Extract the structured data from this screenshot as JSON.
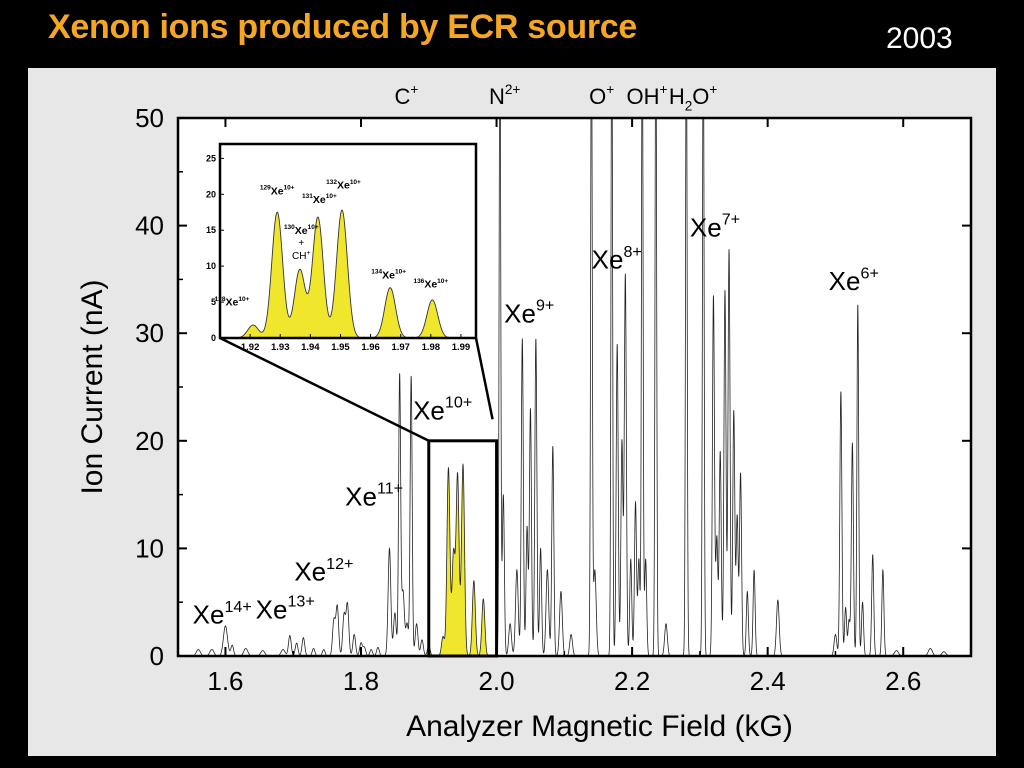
{
  "header": {
    "title": "Xenon ions produced by ECR source",
    "year": "2003"
  },
  "colors": {
    "background": "#000000",
    "panel": "#e7e7e7",
    "title": "#f5a623",
    "fill": "#f0e62c"
  },
  "chart_data": [
    {
      "type": "line",
      "title": "",
      "xlabel": "Analyzer Magnetic Field (kG)",
      "ylabel": "Ion Current (nA)",
      "xlim": [
        1.53,
        2.7
      ],
      "ylim": [
        0,
        50
      ],
      "xticks": [
        1.6,
        1.8,
        2.0,
        2.2,
        2.4,
        2.6
      ],
      "yticks": [
        0,
        10,
        20,
        30,
        40,
        50
      ],
      "grid": false,
      "highlight_region": [
        1.9,
        2.0
      ],
      "peaks": [
        [
          1.56,
          0.6,
          0.003
        ],
        [
          1.58,
          0.6,
          0.003
        ],
        [
          1.6,
          2.8,
          0.003
        ],
        [
          1.61,
          1.0,
          0.002
        ],
        [
          1.63,
          0.7,
          0.003
        ],
        [
          1.655,
          0.5,
          0.003
        ],
        [
          1.685,
          0.6,
          0.003
        ],
        [
          1.695,
          1.9,
          0.002
        ],
        [
          1.705,
          1.2,
          0.002
        ],
        [
          1.715,
          1.7,
          0.002
        ],
        [
          1.73,
          0.7,
          0.002
        ],
        [
          1.745,
          0.6,
          0.002
        ],
        [
          1.76,
          3.3,
          0.002
        ],
        [
          1.765,
          4.6,
          0.002
        ],
        [
          1.775,
          3.8,
          0.002
        ],
        [
          1.78,
          4.8,
          0.002
        ],
        [
          1.79,
          2.0,
          0.002
        ],
        [
          1.8,
          1.2,
          0.002
        ],
        [
          1.805,
          0.8,
          0.002
        ],
        [
          1.815,
          0.6,
          0.002
        ],
        [
          1.825,
          0.8,
          0.002
        ],
        [
          1.842,
          10.0,
          0.002
        ],
        [
          1.85,
          4.0,
          0.002
        ],
        [
          1.857,
          26.0,
          0.0015
        ],
        [
          1.862,
          6.0,
          0.002
        ],
        [
          1.868,
          3.0,
          0.002
        ],
        [
          1.874,
          26.0,
          0.0015
        ],
        [
          1.882,
          3.0,
          0.002
        ],
        [
          1.89,
          1.5,
          0.002
        ],
        [
          1.9,
          1.0,
          0.002
        ],
        [
          1.921,
          1.8,
          0.0022
        ],
        [
          1.929,
          17.5,
          0.0022
        ],
        [
          1.9365,
          9.5,
          0.0022
        ],
        [
          1.9425,
          16.8,
          0.0022
        ],
        [
          1.9505,
          17.8,
          0.0022
        ],
        [
          1.9665,
          7.0,
          0.0022
        ],
        [
          1.9805,
          5.3,
          0.0022
        ],
        [
          2.005,
          60,
          0.0012
        ],
        [
          2.01,
          15,
          0.0015
        ],
        [
          2.02,
          3,
          0.002
        ],
        [
          2.03,
          8,
          0.002
        ],
        [
          2.038,
          29.5,
          0.0015
        ],
        [
          2.045,
          12,
          0.0015
        ],
        [
          2.05,
          23,
          0.0015
        ],
        [
          2.058,
          29.5,
          0.0015
        ],
        [
          2.065,
          10,
          0.0015
        ],
        [
          2.075,
          8,
          0.002
        ],
        [
          2.083,
          19.5,
          0.0015
        ],
        [
          2.095,
          6,
          0.002
        ],
        [
          2.11,
          2,
          0.002
        ],
        [
          2.14,
          60,
          0.0012
        ],
        [
          2.145,
          8,
          0.002
        ],
        [
          2.17,
          60,
          0.0012
        ],
        [
          2.178,
          29,
          0.0015
        ],
        [
          2.185,
          20,
          0.0015
        ],
        [
          2.19,
          35.5,
          0.0015
        ],
        [
          2.198,
          9,
          0.0015
        ],
        [
          2.205,
          14.3,
          0.0015
        ],
        [
          2.21,
          9,
          0.0015
        ],
        [
          2.215,
          60,
          0.0012
        ],
        [
          2.22,
          9,
          0.0015
        ],
        [
          2.235,
          60,
          0.0012
        ],
        [
          2.25,
          3,
          0.002
        ],
        [
          2.28,
          60,
          0.0012
        ],
        [
          2.305,
          60,
          0.0012
        ],
        [
          2.32,
          33.5,
          0.0015
        ],
        [
          2.325,
          11,
          0.0015
        ],
        [
          2.33,
          19,
          0.0015
        ],
        [
          2.337,
          34,
          0.0015
        ],
        [
          2.343,
          37.8,
          0.0015
        ],
        [
          2.35,
          22.8,
          0.0015
        ],
        [
          2.355,
          13,
          0.0015
        ],
        [
          2.36,
          17,
          0.0015
        ],
        [
          2.37,
          6,
          0.0015
        ],
        [
          2.38,
          8,
          0.0015
        ],
        [
          2.415,
          5.2,
          0.002
        ],
        [
          2.5,
          2,
          0.002
        ],
        [
          2.508,
          24.6,
          0.0015
        ],
        [
          2.515,
          4.5,
          0.0015
        ],
        [
          2.52,
          3.3,
          0.0015
        ],
        [
          2.525,
          19.8,
          0.0015
        ],
        [
          2.533,
          32.7,
          0.0013
        ],
        [
          2.54,
          5,
          0.0015
        ],
        [
          2.555,
          9.4,
          0.0015
        ],
        [
          2.57,
          8,
          0.0015
        ],
        [
          2.59,
          0.5,
          0.003
        ],
        [
          2.64,
          0.7,
          0.003
        ],
        [
          2.66,
          0.4,
          0.003
        ]
      ],
      "peak_labels": [
        {
          "base": "Xe",
          "sup": "14+",
          "x": 1.61,
          "y": 3.0
        },
        {
          "base": "Xe",
          "sup": "13+",
          "x": 1.7,
          "y": 3.5
        },
        {
          "base": "Xe",
          "sup": "12+",
          "x": 1.76,
          "y": 7.0
        },
        {
          "base": "Xe",
          "sup": "11+",
          "x": 1.84,
          "y": 14.0
        },
        {
          "base": "Xe",
          "sup": "10+",
          "x": 1.95,
          "y": 22.0
        },
        {
          "base": "Xe",
          "sup": "9+",
          "x": 2.06,
          "y": 31.0
        },
        {
          "base": "Xe",
          "sup": "8+",
          "x": 2.195,
          "y": 36.0
        },
        {
          "base": "Xe",
          "sup": "7+",
          "x": 2.34,
          "y": 39.0
        },
        {
          "base": "Xe",
          "sup": "6+",
          "x": 2.53,
          "y": 34.0
        }
      ],
      "contaminant_labels": [
        {
          "base": "C",
          "sup": "+",
          "x": 1.867
        },
        {
          "base": "N",
          "sup": "2+",
          "x": 2.012
        },
        {
          "base": "O",
          "sup": "+",
          "x": 2.155
        },
        {
          "base": "OH",
          "sup": "+",
          "x": 2.222
        },
        {
          "base": "H",
          "sub": "2",
          "after": "O",
          "sup": "+",
          "x": 2.29
        }
      ]
    },
    {
      "type": "area",
      "title": "",
      "xlabel": "",
      "ylabel": "",
      "xlim": [
        1.91,
        1.995
      ],
      "ylim": [
        0,
        27
      ],
      "xticks": [
        1.92,
        1.93,
        1.94,
        1.95,
        1.96,
        1.97,
        1.98,
        1.99
      ],
      "yticks": [
        0,
        5,
        10,
        15,
        20,
        25
      ],
      "peaks": [
        [
          1.921,
          1.8,
          0.0018
        ],
        [
          1.929,
          17.5,
          0.0018
        ],
        [
          1.9365,
          9.5,
          0.0018
        ],
        [
          1.9425,
          16.8,
          0.0018
        ],
        [
          1.9505,
          17.8,
          0.0018
        ],
        [
          1.9665,
          7.0,
          0.0018
        ],
        [
          1.9805,
          5.3,
          0.0018
        ]
      ],
      "isotope_labels": [
        {
          "mass": "128",
          "base": "Xe",
          "sup": "10+",
          "x": 1.914,
          "y": 4.5
        },
        {
          "mass": "129",
          "base": "Xe",
          "sup": "10+",
          "x": 1.929,
          "y": 20.0
        },
        {
          "mass": "130",
          "base": "Xe",
          "sup": "10+",
          "x": 1.937,
          "y": 14.5,
          "extra": [
            "+",
            "CH"
          ],
          "extra_sup": "+"
        },
        {
          "mass": "131",
          "base": "Xe",
          "sup": "10+",
          "x": 1.943,
          "y": 18.8
        },
        {
          "mass": "132",
          "base": "Xe",
          "sup": "10+",
          "x": 1.951,
          "y": 20.8
        },
        {
          "mass": "134",
          "base": "Xe",
          "sup": "10+",
          "x": 1.966,
          "y": 8.3
        },
        {
          "mass": "136",
          "base": "Xe",
          "sup": "10+",
          "x": 1.98,
          "y": 7.0
        }
      ]
    }
  ]
}
